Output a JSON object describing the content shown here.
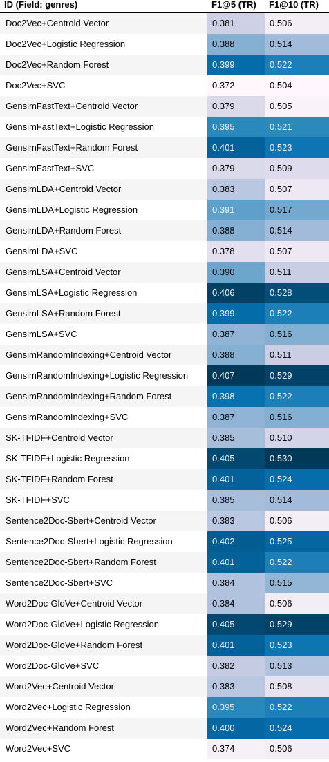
{
  "chart_data": {
    "type": "table",
    "columns": [
      "ID (Field: genres)",
      "F1@5 (TR)",
      "F1@10 (TR)"
    ],
    "rows": [
      {
        "id": "Doc2Vec+Centroid Vector",
        "f1_5": "0.381",
        "f1_10": "0.506"
      },
      {
        "id": "Doc2Vec+Logistic Regression",
        "f1_5": "0.388",
        "f1_10": "0.514"
      },
      {
        "id": "Doc2Vec+Random Forest",
        "f1_5": "0.399",
        "f1_10": "0.522"
      },
      {
        "id": "Doc2Vec+SVC",
        "f1_5": "0.372",
        "f1_10": "0.504"
      },
      {
        "id": "GensimFastText+Centroid Vector",
        "f1_5": "0.379",
        "f1_10": "0.505"
      },
      {
        "id": "GensimFastText+Logistic Regression",
        "f1_5": "0.395",
        "f1_10": "0.521"
      },
      {
        "id": "GensimFastText+Random Forest",
        "f1_5": "0.401",
        "f1_10": "0.523"
      },
      {
        "id": "GensimFastText+SVC",
        "f1_5": "0.379",
        "f1_10": "0.509"
      },
      {
        "id": "GensimLDA+Centroid Vector",
        "f1_5": "0.383",
        "f1_10": "0.507"
      },
      {
        "id": "GensimLDA+Logistic Regression",
        "f1_5": "0.391",
        "f1_10": "0.517"
      },
      {
        "id": "GensimLDA+Random Forest",
        "f1_5": "0.388",
        "f1_10": "0.514"
      },
      {
        "id": "GensimLDA+SVC",
        "f1_5": "0.378",
        "f1_10": "0.507"
      },
      {
        "id": "GensimLSA+Centroid Vector",
        "f1_5": "0.390",
        "f1_10": "0.511"
      },
      {
        "id": "GensimLSA+Logistic Regression",
        "f1_5": "0.406",
        "f1_10": "0.528"
      },
      {
        "id": "GensimLSA+Random Forest",
        "f1_5": "0.399",
        "f1_10": "0.522"
      },
      {
        "id": "GensimLSA+SVC",
        "f1_5": "0.387",
        "f1_10": "0.516"
      },
      {
        "id": "GensimRandomIndexing+Centroid Vector",
        "f1_5": "0.388",
        "f1_10": "0.511"
      },
      {
        "id": "GensimRandomIndexing+Logistic Regression",
        "f1_5": "0.407",
        "f1_10": "0.529"
      },
      {
        "id": "GensimRandomIndexing+Random Forest",
        "f1_5": "0.398",
        "f1_10": "0.522"
      },
      {
        "id": "GensimRandomIndexing+SVC",
        "f1_5": "0.387",
        "f1_10": "0.516"
      },
      {
        "id": "SK-TFIDF+Centroid Vector",
        "f1_5": "0.385",
        "f1_10": "0.510"
      },
      {
        "id": "SK-TFIDF+Logistic Regression",
        "f1_5": "0.405",
        "f1_10": "0.530"
      },
      {
        "id": "SK-TFIDF+Random Forest",
        "f1_5": "0.401",
        "f1_10": "0.524"
      },
      {
        "id": "SK-TFIDF+SVC",
        "f1_5": "0.385",
        "f1_10": "0.514"
      },
      {
        "id": "Sentence2Doc-Sbert+Centroid Vector",
        "f1_5": "0.383",
        "f1_10": "0.506"
      },
      {
        "id": "Sentence2Doc-Sbert+Logistic Regression",
        "f1_5": "0.402",
        "f1_10": "0.525"
      },
      {
        "id": "Sentence2Doc-Sbert+Random Forest",
        "f1_5": "0.401",
        "f1_10": "0.522"
      },
      {
        "id": "Sentence2Doc-Sbert+SVC",
        "f1_5": "0.384",
        "f1_10": "0.515"
      },
      {
        "id": "Word2Doc-GloVe+Centroid Vector",
        "f1_5": "0.384",
        "f1_10": "0.506"
      },
      {
        "id": "Word2Doc-GloVe+Logistic Regression",
        "f1_5": "0.405",
        "f1_10": "0.529"
      },
      {
        "id": "Word2Doc-GloVe+Random Forest",
        "f1_5": "0.401",
        "f1_10": "0.523"
      },
      {
        "id": "Word2Doc-GloVe+SVC",
        "f1_5": "0.382",
        "f1_10": "0.513"
      },
      {
        "id": "Word2Vec+Centroid Vector",
        "f1_5": "0.383",
        "f1_10": "0.508"
      },
      {
        "id": "Word2Vec+Logistic Regression",
        "f1_5": "0.395",
        "f1_10": "0.522"
      },
      {
        "id": "Word2Vec+Random Forest",
        "f1_5": "0.400",
        "f1_10": "0.524"
      },
      {
        "id": "Word2Vec+SVC",
        "f1_5": "0.374",
        "f1_10": "0.506"
      }
    ],
    "colormap": [
      "#fff7fb",
      "#ece7f2",
      "#d0d1e6",
      "#a6bddb",
      "#74a9cf",
      "#3690c0",
      "#0570b0",
      "#045a8d",
      "#023858"
    ],
    "light_text_color": "#f1f1f1",
    "dark_text_color": "#000000"
  }
}
